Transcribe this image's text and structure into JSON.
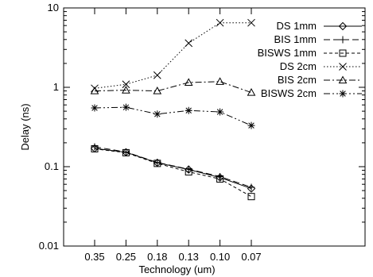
{
  "chart_data": {
    "type": "line",
    "title": "",
    "xlabel": "Technology (um)",
    "ylabel": "Delay (ns)",
    "y_scale": "log",
    "ylim": [
      0.01,
      10
    ],
    "y_ticks": [
      "0.01",
      "0.1",
      "1",
      "10"
    ],
    "categories": [
      "0.35",
      "0.25",
      "0.18",
      "0.13",
      "0.10",
      "0.07"
    ],
    "legend_position": "top-right",
    "grid": false,
    "series": [
      {
        "name": "DS 1mm",
        "marker": "diamond",
        "dash": "solid",
        "values": [
          0.17,
          0.152,
          0.112,
          0.092,
          0.073,
          0.053
        ]
      },
      {
        "name": "BIS 1mm",
        "marker": "plus",
        "dash": "longdash",
        "values": [
          0.178,
          0.153,
          0.113,
          0.093,
          0.075,
          0.055
        ]
      },
      {
        "name": "BISWS 1mm",
        "marker": "square",
        "dash": "shortdash",
        "values": [
          0.168,
          0.15,
          0.11,
          0.086,
          0.07,
          0.042
        ]
      },
      {
        "name": "DS 2cm",
        "marker": "x",
        "dash": "dotted",
        "values": [
          0.97,
          1.09,
          1.42,
          3.6,
          6.5,
          6.5
        ]
      },
      {
        "name": "BIS 2cm",
        "marker": "triangle",
        "dash": "dashdot",
        "values": [
          0.9,
          0.92,
          0.9,
          1.15,
          1.18,
          0.86
        ]
      },
      {
        "name": "BISWS 2cm",
        "marker": "star",
        "dash": "dashdotdot",
        "values": [
          0.55,
          0.56,
          0.46,
          0.51,
          0.49,
          0.33
        ]
      }
    ]
  }
}
